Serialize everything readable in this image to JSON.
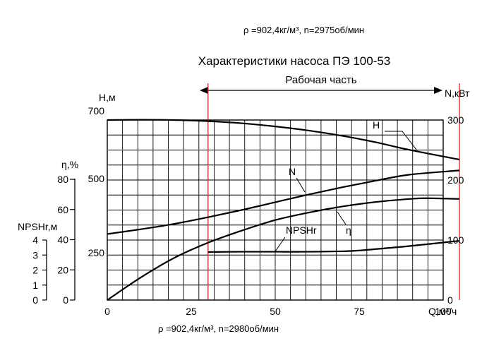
{
  "chart_data": {
    "type": "line",
    "title": "Характеристики насоса ПЭ 100-53",
    "top_note": "ρ =902,4кг/м³, n=2975об/мин",
    "bottom_note": "ρ =902,4кг/м³, n=2980об/мин",
    "work_zone_label": "Рабочая часть",
    "work_zone": [
      30,
      100
    ],
    "grid": true,
    "x_axis": {
      "label": "Q,м³/ч",
      "range": [
        0,
        100
      ],
      "ticks": [
        {
          "v": 0,
          "t": "0"
        },
        {
          "v": 25,
          "t": "25"
        },
        {
          "v": 50,
          "t": "50"
        },
        {
          "v": 75,
          "t": "75"
        },
        {
          "v": 100,
          "t": "100"
        }
      ]
    },
    "axes": {
      "H": {
        "label": "Н,м",
        "ticks": [
          {
            "v": 700,
            "t": "700"
          },
          {
            "v": 500,
            "t": "500"
          },
          {
            "v": 250,
            "t": "250"
          }
        ]
      },
      "N": {
        "label": "N,кВт",
        "range": [
          0,
          300
        ],
        "ticks": [
          {
            "v": 0,
            "t": "0"
          },
          {
            "v": 100,
            "t": "100"
          },
          {
            "v": 200,
            "t": "200"
          },
          {
            "v": 300,
            "t": "300"
          }
        ]
      },
      "eta": {
        "label": "η,%",
        "range": [
          0,
          80
        ],
        "ticks": [
          {
            "v": 0,
            "t": "0"
          },
          {
            "v": 20,
            "t": "20"
          },
          {
            "v": 40,
            "t": "40"
          },
          {
            "v": 60,
            "t": "60"
          },
          {
            "v": 80,
            "t": "80"
          }
        ]
      },
      "npsh": {
        "label": "NPSHr,м",
        "range": [
          0,
          4
        ],
        "ticks": [
          {
            "v": 0,
            "t": "0"
          },
          {
            "v": 1,
            "t": "1"
          },
          {
            "v": 2,
            "t": "2"
          },
          {
            "v": 3,
            "t": "3"
          },
          {
            "v": 4,
            "t": "4"
          }
        ]
      }
    },
    "series": [
      {
        "name": "Н",
        "axis": "H",
        "x": [
          0,
          10,
          20,
          30,
          40,
          50,
          60,
          70,
          80,
          90,
          100
        ],
        "y": [
          700,
          701,
          700,
          696,
          689,
          678,
          664,
          646,
          624,
          598,
          565
        ]
      },
      {
        "name": "N",
        "axis": "N",
        "x": [
          0,
          10,
          20,
          30,
          40,
          50,
          60,
          70,
          80,
          90,
          100
        ],
        "y": [
          110,
          118,
          127,
          138,
          150,
          163,
          176,
          188,
          199,
          209,
          216
        ]
      },
      {
        "name": "η",
        "axis": "eta",
        "x": [
          0,
          10,
          20,
          30,
          40,
          50,
          60,
          70,
          80,
          90,
          95,
          100
        ],
        "y": [
          0,
          15,
          28,
          38,
          46,
          53,
          58,
          62,
          65,
          67,
          67.5,
          67
        ]
      },
      {
        "name": "NPSHr",
        "axis": "npsh",
        "x": [
          30,
          40,
          50,
          60,
          70,
          75,
          80,
          90,
          100
        ],
        "y": [
          3.2,
          3.22,
          3.22,
          3.22,
          3.25,
          3.3,
          3.4,
          3.6,
          3.95
        ]
      }
    ]
  }
}
